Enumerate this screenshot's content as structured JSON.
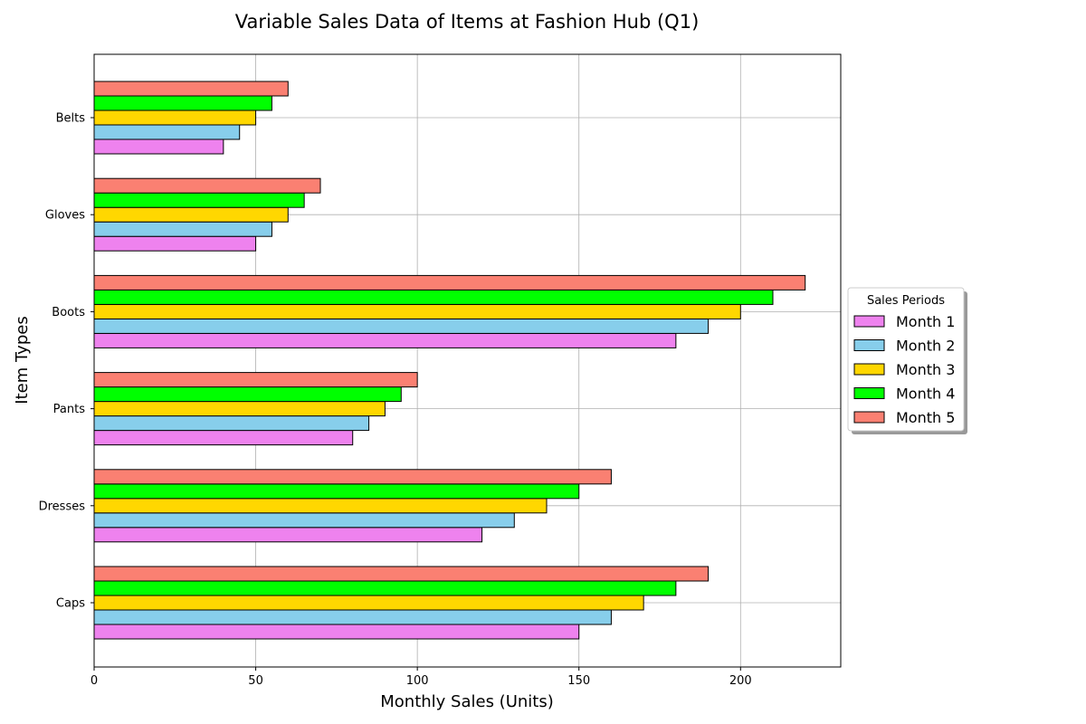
{
  "chart_data": {
    "type": "bar",
    "orientation": "horizontal",
    "title": "Variable Sales Data of Items at Fashion Hub (Q1)",
    "xlabel": "Monthly Sales (Units)",
    "ylabel": "Item Types",
    "xlim": [
      0,
      231
    ],
    "x_ticks": [
      0,
      50,
      100,
      150,
      200
    ],
    "grid": true,
    "legend_title": "Sales Periods",
    "legend_position": "right",
    "categories": [
      "Caps",
      "Dresses",
      "Pants",
      "Boots",
      "Gloves",
      "Belts"
    ],
    "series": [
      {
        "name": "Month 1",
        "color": "#ee82ee",
        "values": [
          150,
          120,
          80,
          180,
          50,
          40
        ]
      },
      {
        "name": "Month 2",
        "color": "#87ceeb",
        "values": [
          160,
          130,
          85,
          190,
          55,
          45
        ]
      },
      {
        "name": "Month 3",
        "color": "#ffd700",
        "values": [
          170,
          140,
          90,
          200,
          60,
          50
        ]
      },
      {
        "name": "Month 4",
        "color": "#00ff00",
        "values": [
          180,
          150,
          95,
          210,
          65,
          55
        ]
      },
      {
        "name": "Month 5",
        "color": "#fa8072",
        "values": [
          190,
          160,
          100,
          220,
          70,
          60
        ]
      }
    ]
  }
}
